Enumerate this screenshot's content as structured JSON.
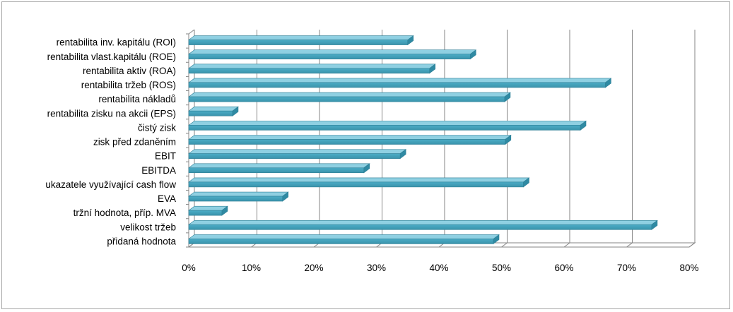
{
  "chart_data": {
    "type": "bar",
    "orientation": "horizontal",
    "style": "3d",
    "categories": [
      "rentabilita inv. kapitálu (ROI)",
      "rentabilita vlast.kapitálu (ROE)",
      "rentabilita aktiv (ROA)",
      "rentabilita tržeb (ROS)",
      "rentabilita nákladů",
      "rentabilita zisku na akcii (EPS)",
      "čistý zisk",
      "zisk před zdaněním",
      "EBIT",
      "EBITDA",
      "ukazatele využívající cash flow",
      "EVA",
      "tržní hodnota, příp. MVA",
      "velikost tržeb",
      "přidaná hodnota"
    ],
    "values": [
      35,
      45,
      38.5,
      66.6,
      50.5,
      7,
      62.6,
      50.6,
      33.8,
      28,
      53.5,
      15,
      5.3,
      74,
      48.7
    ],
    "xlim": [
      0,
      80
    ],
    "xticks": [
      "0%",
      "10%",
      "20%",
      "30%",
      "40%",
      "50%",
      "60%",
      "70%",
      "80%"
    ],
    "grid": true,
    "bar_color": "#4bacc6",
    "legend": "none"
  }
}
